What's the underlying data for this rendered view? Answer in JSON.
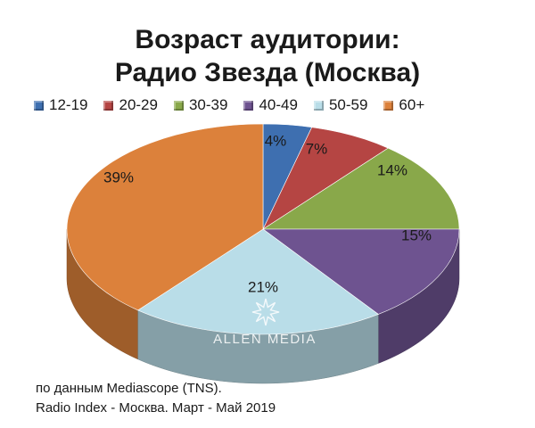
{
  "title_lines": [
    "Возраст аудитории:",
    "Радио Звезда (Москва)"
  ],
  "chart_data": {
    "type": "pie",
    "title": "Возраст аудитории: Радио Звезда (Москва)",
    "categories": [
      "12-19",
      "20-29",
      "30-39",
      "40-49",
      "50-59",
      "60+"
    ],
    "values": [
      4,
      7,
      14,
      15,
      21,
      39
    ],
    "labels": [
      "4%",
      "7%",
      "14%",
      "15%",
      "21%",
      "39%"
    ],
    "colors": [
      "#3e6fb0",
      "#b54543",
      "#89a84a",
      "#6e5390",
      "#b9dde8",
      "#dc813b"
    ],
    "legend_position": "top",
    "style": "3d"
  },
  "watermark": "ALLEN MEDIA",
  "source_lines": [
    "по данным Mediascope (TNS).",
    "Radio Index - Москва. Март - Май 2019"
  ]
}
